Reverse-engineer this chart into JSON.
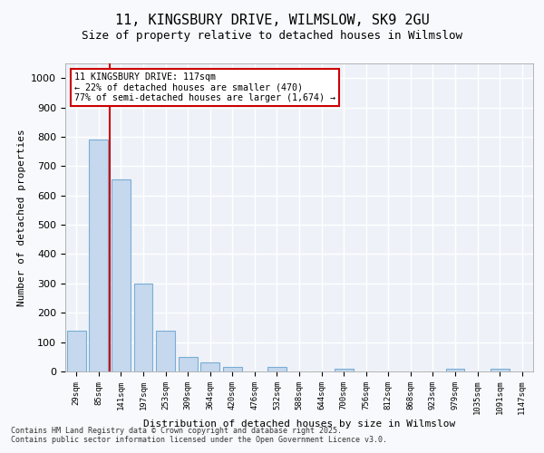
{
  "title_line1": "11, KINGSBURY DRIVE, WILMSLOW, SK9 2GU",
  "title_line2": "Size of property relative to detached houses in Wilmslow",
  "xlabel": "Distribution of detached houses by size in Wilmslow",
  "ylabel": "Number of detached properties",
  "categories": [
    "29sqm",
    "85sqm",
    "141sqm",
    "197sqm",
    "253sqm",
    "309sqm",
    "364sqm",
    "420sqm",
    "476sqm",
    "532sqm",
    "588sqm",
    "644sqm",
    "700sqm",
    "756sqm",
    "812sqm",
    "868sqm",
    "923sqm",
    "979sqm",
    "1035sqm",
    "1091sqm",
    "1147sqm"
  ],
  "values": [
    140,
    790,
    655,
    300,
    140,
    50,
    30,
    15,
    0,
    15,
    0,
    0,
    10,
    0,
    0,
    0,
    0,
    10,
    0,
    10,
    0
  ],
  "bar_color": "#c5d8ed",
  "bar_edge_color": "#7aadd4",
  "bg_color": "#eef2f8",
  "grid_color": "#ffffff",
  "property_line_x": 1,
  "property_size": "117sqm",
  "annotation_line1": "11 KINGSBURY DRIVE: 117sqm",
  "annotation_line2": "← 22% of detached houses are smaller (470)",
  "annotation_line3": "77% of semi-detached houses are larger (1,674) →",
  "annotation_box_color": "#cc0000",
  "vline_color": "#cc0000",
  "footer_line1": "Contains HM Land Registry data © Crown copyright and database right 2025.",
  "footer_line2": "Contains public sector information licensed under the Open Government Licence v3.0.",
  "ylim": [
    0,
    1050
  ],
  "yticks": [
    0,
    100,
    200,
    300,
    400,
    500,
    600,
    700,
    800,
    900,
    1000
  ]
}
